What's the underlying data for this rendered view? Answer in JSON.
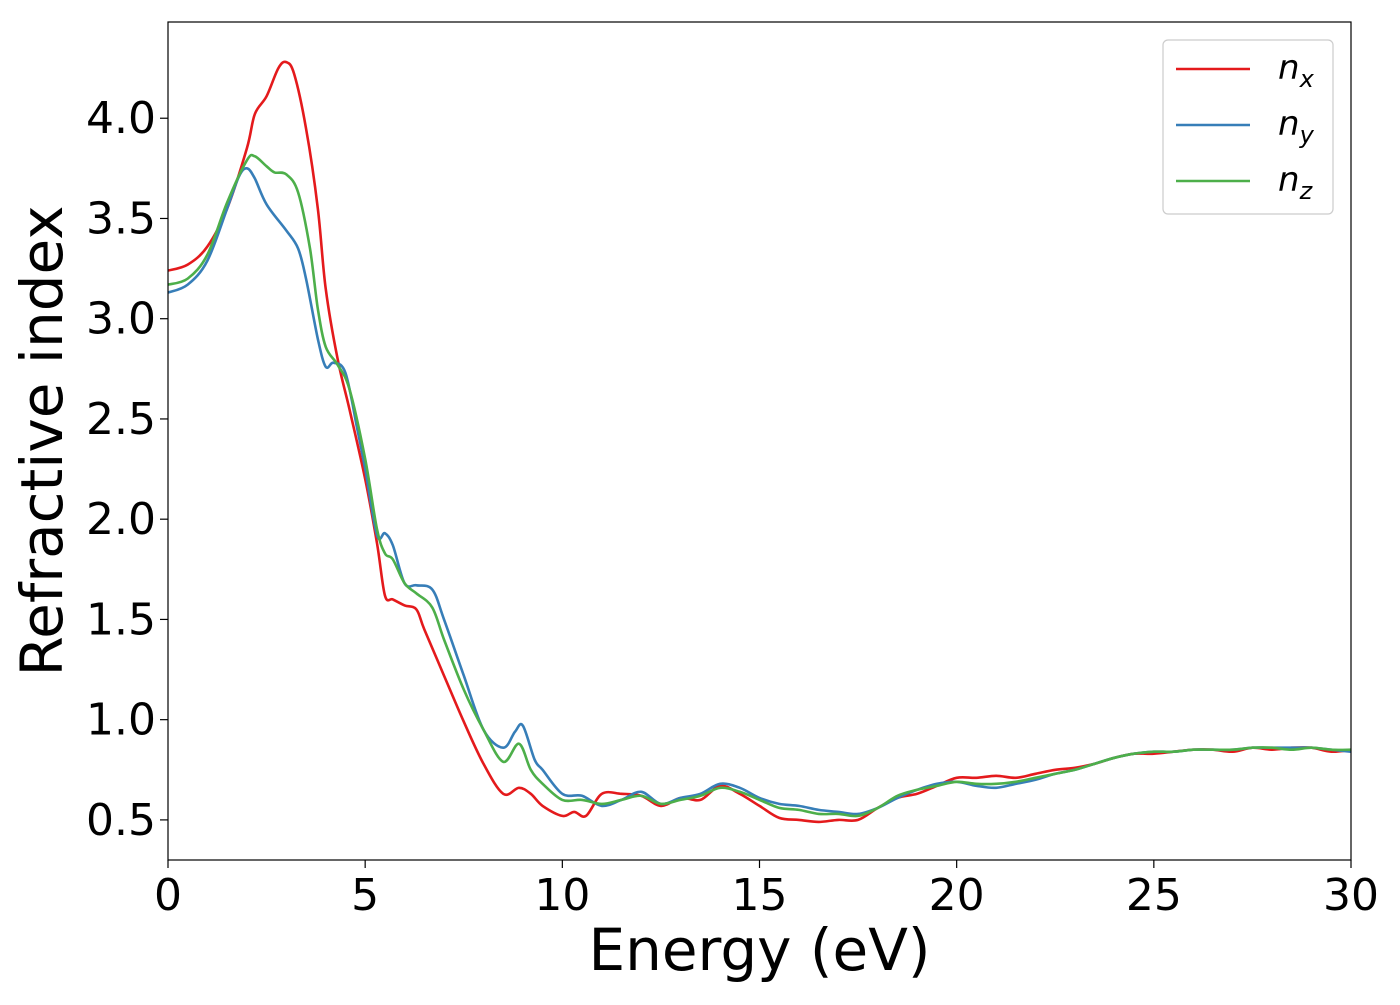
{
  "chart_data": {
    "type": "line",
    "title": "",
    "xlabel": "Energy (eV)",
    "ylabel": "Refractive index",
    "xlim": [
      0,
      30
    ],
    "ylim": [
      0.3,
      4.48
    ],
    "xticks": [
      0,
      5,
      10,
      15,
      20,
      25,
      30
    ],
    "xtick_labels": [
      "0",
      "5",
      "10",
      "15",
      "20",
      "25",
      "30"
    ],
    "yticks": [
      0.5,
      1.0,
      1.5,
      2.0,
      2.5,
      3.0,
      3.5,
      4.0
    ],
    "ytick_labels": [
      "0.5",
      "1.0",
      "1.5",
      "2.0",
      "2.5",
      "3.0",
      "3.5",
      "4.0"
    ],
    "grid": false,
    "legend_position": "top-right",
    "series": [
      {
        "name": "n_x",
        "label_base": "n",
        "label_sub": "x",
        "color": "#e41a1c",
        "x": [
          0,
          0.5,
          1.0,
          1.5,
          2.0,
          2.2,
          2.5,
          2.8,
          3.0,
          3.2,
          3.5,
          3.8,
          4.0,
          4.3,
          4.6,
          5.0,
          5.3,
          5.5,
          5.7,
          6.0,
          6.3,
          6.5,
          7.0,
          7.5,
          8.0,
          8.5,
          8.9,
          9.2,
          9.5,
          10.0,
          10.3,
          10.6,
          11.0,
          11.5,
          12.0,
          12.5,
          13.0,
          13.5,
          14.0,
          14.5,
          15.0,
          15.5,
          16.0,
          16.5,
          17.0,
          17.5,
          18.0,
          18.5,
          19.0,
          19.5,
          20.0,
          20.5,
          21.0,
          21.5,
          22.0,
          22.5,
          23.0,
          23.5,
          24.0,
          24.5,
          25.0,
          25.5,
          26.0,
          26.5,
          27.0,
          27.5,
          28.0,
          28.5,
          29.0,
          29.5,
          30.0
        ],
        "y": [
          3.24,
          3.27,
          3.36,
          3.55,
          3.85,
          4.02,
          4.11,
          4.25,
          4.28,
          4.22,
          3.95,
          3.55,
          3.15,
          2.8,
          2.55,
          2.2,
          1.88,
          1.62,
          1.6,
          1.57,
          1.55,
          1.45,
          1.22,
          0.99,
          0.78,
          0.63,
          0.66,
          0.63,
          0.57,
          0.52,
          0.54,
          0.52,
          0.63,
          0.63,
          0.62,
          0.57,
          0.61,
          0.6,
          0.67,
          0.63,
          0.57,
          0.51,
          0.5,
          0.49,
          0.5,
          0.5,
          0.56,
          0.61,
          0.63,
          0.67,
          0.71,
          0.71,
          0.72,
          0.71,
          0.73,
          0.75,
          0.76,
          0.78,
          0.81,
          0.83,
          0.83,
          0.84,
          0.85,
          0.85,
          0.84,
          0.86,
          0.85,
          0.86,
          0.86,
          0.84,
          0.85
        ]
      },
      {
        "name": "n_y",
        "label_base": "n",
        "label_sub": "y",
        "color": "#377eb8",
        "x": [
          0,
          0.5,
          1.0,
          1.5,
          1.8,
          2.0,
          2.2,
          2.5,
          3.0,
          3.3,
          3.5,
          3.8,
          4.0,
          4.2,
          4.5,
          4.8,
          5.0,
          5.3,
          5.5,
          5.7,
          6.0,
          6.3,
          6.7,
          7.0,
          7.5,
          8.0,
          8.5,
          8.8,
          9.0,
          9.3,
          9.5,
          10.0,
          10.5,
          11.0,
          11.5,
          12.0,
          12.5,
          13.0,
          13.5,
          14.0,
          14.5,
          15.0,
          15.5,
          16.0,
          16.5,
          17.0,
          17.5,
          18.0,
          18.5,
          19.0,
          19.5,
          20.0,
          20.5,
          21.0,
          21.5,
          22.0,
          22.5,
          23.0,
          23.5,
          24.0,
          24.5,
          25.0,
          25.5,
          26.0,
          26.5,
          27.0,
          27.5,
          28.0,
          28.5,
          29.0,
          29.5,
          30.0
        ],
        "y": [
          3.13,
          3.17,
          3.29,
          3.55,
          3.71,
          3.75,
          3.7,
          3.57,
          3.44,
          3.35,
          3.2,
          2.9,
          2.76,
          2.78,
          2.73,
          2.45,
          2.25,
          1.92,
          1.93,
          1.87,
          1.68,
          1.67,
          1.65,
          1.5,
          1.22,
          0.95,
          0.86,
          0.94,
          0.97,
          0.8,
          0.75,
          0.63,
          0.62,
          0.57,
          0.6,
          0.64,
          0.58,
          0.61,
          0.63,
          0.68,
          0.66,
          0.61,
          0.58,
          0.57,
          0.55,
          0.54,
          0.53,
          0.56,
          0.61,
          0.65,
          0.68,
          0.69,
          0.67,
          0.66,
          0.68,
          0.7,
          0.73,
          0.75,
          0.78,
          0.81,
          0.83,
          0.84,
          0.84,
          0.85,
          0.85,
          0.85,
          0.86,
          0.86,
          0.86,
          0.86,
          0.85,
          0.84
        ]
      },
      {
        "name": "n_z",
        "label_base": "n",
        "label_sub": "z",
        "color": "#4daf4a",
        "x": [
          0,
          0.5,
          1.0,
          1.5,
          2.0,
          2.2,
          2.5,
          2.7,
          3.0,
          3.3,
          3.6,
          3.8,
          4.0,
          4.3,
          4.6,
          5.0,
          5.3,
          5.5,
          5.7,
          6.0,
          6.3,
          6.7,
          7.0,
          7.5,
          8.0,
          8.5,
          8.9,
          9.2,
          9.5,
          10.0,
          10.5,
          11.0,
          11.5,
          12.0,
          12.5,
          13.0,
          13.5,
          14.0,
          14.5,
          15.0,
          15.5,
          16.0,
          16.5,
          17.0,
          17.5,
          18.0,
          18.5,
          19.0,
          19.5,
          20.0,
          20.5,
          21.0,
          21.5,
          22.0,
          22.5,
          23.0,
          23.5,
          24.0,
          24.5,
          25.0,
          25.5,
          26.0,
          26.5,
          27.0,
          27.5,
          28.0,
          28.5,
          29.0,
          29.5,
          30.0
        ],
        "y": [
          3.17,
          3.2,
          3.32,
          3.58,
          3.79,
          3.81,
          3.76,
          3.73,
          3.72,
          3.63,
          3.35,
          3.05,
          2.86,
          2.77,
          2.65,
          2.3,
          1.95,
          1.83,
          1.8,
          1.68,
          1.63,
          1.56,
          1.4,
          1.15,
          0.95,
          0.79,
          0.88,
          0.75,
          0.68,
          0.6,
          0.6,
          0.58,
          0.6,
          0.62,
          0.58,
          0.6,
          0.62,
          0.66,
          0.64,
          0.6,
          0.56,
          0.55,
          0.53,
          0.53,
          0.52,
          0.56,
          0.62,
          0.65,
          0.67,
          0.69,
          0.68,
          0.68,
          0.69,
          0.71,
          0.73,
          0.75,
          0.78,
          0.81,
          0.83,
          0.84,
          0.84,
          0.85,
          0.85,
          0.85,
          0.86,
          0.86,
          0.85,
          0.86,
          0.85,
          0.85
        ]
      }
    ]
  }
}
